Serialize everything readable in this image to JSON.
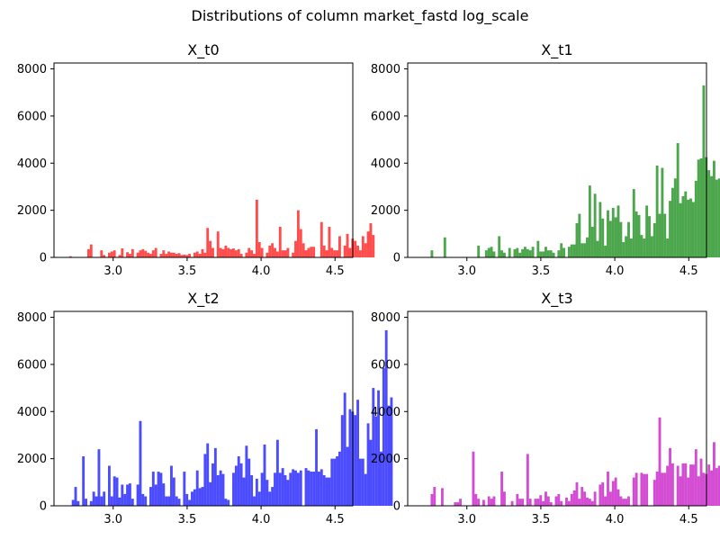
{
  "title": "Distributions of column market_fastd log_scale",
  "chart_data": [
    {
      "type": "bar",
      "title": "X_t0",
      "color": "#ff0000",
      "opacity": 0.7,
      "xlim": [
        2.6,
        4.62
      ],
      "ylim": [
        0,
        8250
      ],
      "xticks": [
        3.0,
        3.5,
        4.0,
        4.5
      ],
      "xtick_labels": [
        "3.0",
        "3.5",
        "4.0",
        "4.5"
      ],
      "yticks": [
        0,
        2000,
        4000,
        6000,
        8000
      ],
      "ytick_labels": [
        "0",
        "2000",
        "4000",
        "6000",
        "8000"
      ],
      "bin_start": 2.65,
      "bin_width": 0.0175,
      "values": [
        0,
        0,
        0,
        50,
        0,
        0,
        0,
        0,
        0,
        0,
        350,
        550,
        0,
        0,
        0,
        300,
        100,
        0,
        200,
        250,
        300,
        0,
        100,
        380,
        0,
        220,
        150,
        350,
        0,
        200,
        300,
        350,
        280,
        200,
        150,
        300,
        400,
        0,
        150,
        300,
        150,
        250,
        200,
        200,
        150,
        180,
        100,
        120,
        100,
        150,
        0,
        200,
        250,
        150,
        350,
        200,
        1250,
        700,
        400,
        0,
        1100,
        400,
        350,
        500,
        400,
        350,
        380,
        300,
        350,
        150,
        0,
        200,
        400,
        300,
        150,
        2450,
        650,
        400,
        0,
        200,
        500,
        600,
        400,
        250,
        1300,
        300,
        300,
        400,
        0,
        200,
        700,
        2000,
        1200,
        600,
        300,
        400,
        450,
        450,
        0,
        0,
        1500,
        500,
        300,
        1300,
        400,
        300,
        300,
        900,
        0,
        500,
        1000,
        400,
        800,
        700,
        500,
        300,
        900,
        600,
        1100,
        1450,
        950
      ]
    },
    {
      "type": "bar",
      "title": "X_t1",
      "color": "#008000",
      "opacity": 0.7,
      "xlim": [
        2.6,
        4.62
      ],
      "ylim": [
        0,
        8250
      ],
      "xticks": [
        3.0,
        3.5,
        4.0,
        4.5
      ],
      "xtick_labels": [
        "3.0",
        "3.5",
        "4.0",
        "4.5"
      ],
      "yticks": [
        0,
        2000,
        4000,
        6000,
        8000
      ],
      "ytick_labels": [
        "0",
        "2000",
        "4000",
        "6000",
        "8000"
      ],
      "bin_start": 2.65,
      "bin_width": 0.0175,
      "values": [
        0,
        0,
        0,
        0,
        0,
        0,
        300,
        0,
        0,
        0,
        0,
        850,
        0,
        0,
        0,
        0,
        0,
        0,
        0,
        0,
        0,
        0,
        0,
        0,
        500,
        0,
        0,
        300,
        400,
        450,
        250,
        0,
        900,
        300,
        200,
        0,
        400,
        0,
        350,
        400,
        200,
        350,
        450,
        350,
        300,
        450,
        0,
        700,
        250,
        250,
        450,
        300,
        300,
        200,
        0,
        300,
        600,
        400,
        0,
        450,
        550,
        550,
        1450,
        1850,
        600,
        600,
        850,
        3050,
        1300,
        2700,
        700,
        2350,
        1650,
        500,
        2000,
        1550,
        2100,
        1700,
        2200,
        1500,
        650,
        900,
        1500,
        800,
        2900,
        1950,
        1800,
        950,
        800,
        2200,
        1750,
        900,
        1450,
        3900,
        1850,
        3800,
        1850,
        800,
        2400,
        2950,
        3350,
        4850,
        2300,
        2600,
        2800,
        2450,
        2500,
        2350,
        3250,
        4150,
        4200,
        7300,
        4250,
        3700,
        3450,
        4100,
        3300,
        3350
      ]
    },
    {
      "type": "bar",
      "title": "X_t2",
      "color": "#0000ff",
      "opacity": 0.7,
      "xlim": [
        2.6,
        4.62
      ],
      "ylim": [
        0,
        8250
      ],
      "xticks": [
        3.0,
        3.5,
        4.0,
        4.5
      ],
      "xtick_labels": [
        "3.0",
        "3.5",
        "4.0",
        "4.5"
      ],
      "yticks": [
        0,
        2000,
        4000,
        6000,
        8000
      ],
      "ytick_labels": [
        "0",
        "2000",
        "4000",
        "6000",
        "8000"
      ],
      "bin_start": 2.65,
      "bin_width": 0.0175,
      "values": [
        0,
        0,
        0,
        0,
        250,
        800,
        200,
        0,
        2100,
        300,
        0,
        200,
        600,
        400,
        2400,
        400,
        600,
        0,
        1700,
        400,
        1250,
        1200,
        350,
        900,
        500,
        900,
        950,
        300,
        0,
        900,
        3600,
        500,
        400,
        0,
        800,
        1450,
        900,
        1450,
        1400,
        950,
        400,
        400,
        1700,
        1200,
        400,
        300,
        0,
        1450,
        500,
        250,
        600,
        700,
        1500,
        750,
        800,
        2200,
        2650,
        1000,
        1800,
        2450,
        1300,
        1500,
        1350,
        300,
        250,
        0,
        1400,
        1700,
        2100,
        1800,
        1200,
        2550,
        2000,
        1300,
        400,
        1150,
        600,
        1400,
        2600,
        1100,
        600,
        800,
        1400,
        2800,
        1400,
        1600,
        1300,
        1100,
        1400,
        1550,
        1500,
        1400,
        1500,
        0,
        1600,
        1500,
        1450,
        1450,
        3250,
        1450,
        1550,
        1300,
        1200,
        1200,
        2000,
        2000,
        2100,
        2300,
        3850,
        4800,
        2500,
        4100,
        4000,
        3850,
        4500,
        2000,
        2000,
        1350,
        3500,
        2800,
        5000,
        3800,
        4900,
        2300,
        5850,
        7450,
        4250,
        4600
      ]
    },
    {
      "type": "bar",
      "title": "X_t3",
      "color": "#c000c0",
      "opacity": 0.7,
      "xlim": [
        2.6,
        4.62
      ],
      "ylim": [
        0,
        8250
      ],
      "xticks": [
        3.0,
        3.5,
        4.0,
        4.5
      ],
      "xtick_labels": [
        "3.0",
        "3.5",
        "4.0",
        "4.5"
      ],
      "yticks": [
        0,
        2000,
        4000,
        6000,
        8000
      ],
      "ytick_labels": [
        "0",
        "2000",
        "4000",
        "6000",
        "8000"
      ],
      "bin_start": 2.65,
      "bin_width": 0.0175,
      "values": [
        0,
        0,
        0,
        0,
        0,
        0,
        500,
        800,
        0,
        0,
        750,
        0,
        0,
        0,
        0,
        150,
        150,
        300,
        0,
        0,
        0,
        0,
        2300,
        500,
        300,
        0,
        250,
        0,
        400,
        300,
        400,
        0,
        0,
        1450,
        600,
        0,
        0,
        200,
        0,
        500,
        300,
        300,
        0,
        2200,
        300,
        0,
        300,
        300,
        450,
        200,
        600,
        400,
        150,
        0,
        400,
        500,
        200,
        0,
        350,
        200,
        500,
        650,
        1000,
        300,
        800,
        600,
        350,
        300,
        200,
        600,
        0,
        900,
        1000,
        400,
        1450,
        600,
        1050,
        1200,
        700,
        400,
        300,
        300,
        400,
        0,
        1200,
        1400,
        0,
        1400,
        1350,
        1350,
        0,
        0,
        1100,
        1450,
        3750,
        1400,
        1400,
        1700,
        2450,
        1800,
        0,
        1700,
        1250,
        1800,
        1800,
        1200,
        1750,
        1750,
        2400,
        1250,
        2000,
        1400,
        1350,
        1750,
        1500,
        2700,
        1600,
        1700,
        2000,
        0,
        1650,
        1300,
        1500,
        1000,
        1750,
        0,
        1300,
        0,
        0,
        1850,
        1850,
        0,
        1250,
        3950,
        4350
      ]
    }
  ]
}
